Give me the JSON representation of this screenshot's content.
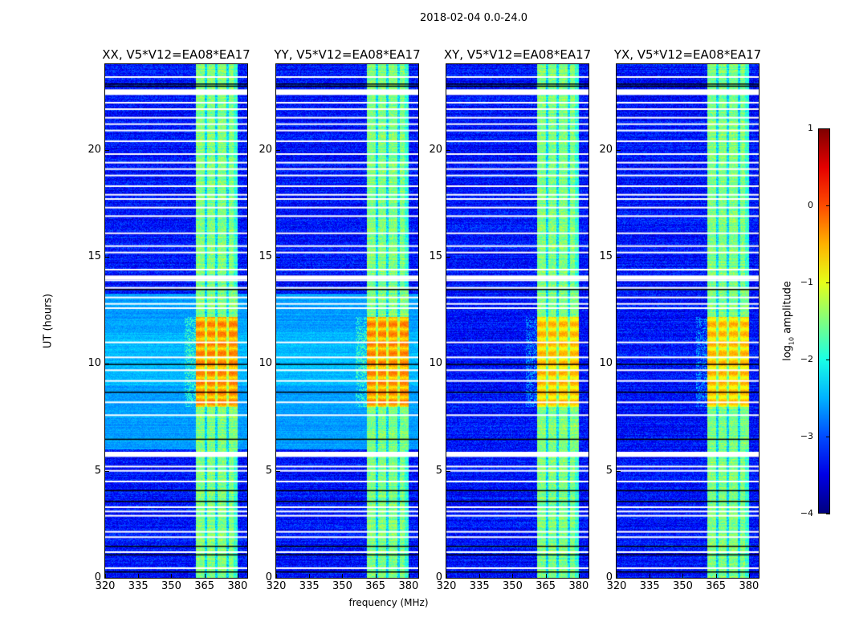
{
  "chart_data": {
    "type": "heatmap",
    "title": "2018-02-04 0.0-24.0",
    "xlabel": "frequency (MHz)",
    "ylabel": "UT (hours)",
    "xlim": [
      320,
      384.4
    ],
    "ylim": [
      0,
      24
    ],
    "xticks": [
      "320",
      "335",
      "350",
      "365",
      "380"
    ],
    "xtick_values": [
      320,
      335,
      350,
      365,
      380
    ],
    "yticks": [
      "0",
      "5",
      "10",
      "15",
      "20"
    ],
    "ytick_values": [
      0,
      5,
      10,
      15,
      20
    ],
    "panels": [
      {
        "title": "XX, V5*V12=EA08*EA17",
        "daytime_background_elevated": true
      },
      {
        "title": "YY, V5*V12=EA08*EA17",
        "daytime_background_elevated": true
      },
      {
        "title": "XY, V5*V12=EA08*EA17",
        "daytime_background_elevated": false
      },
      {
        "title": "YX, V5*V12=EA08*EA17",
        "daytime_background_elevated": false
      }
    ],
    "features": {
      "background_log_amp": -3.3,
      "band_mhz": [
        361,
        380
      ],
      "band_log_amp": -1.5,
      "band_gaps_mhz": [
        365.5,
        370.3,
        375.2
      ],
      "rfi_peak_ut": [
        8,
        12.2
      ],
      "rfi_peak_log_amp": -0.2,
      "flagged_ut": [
        0.45,
        1.2,
        1.9,
        2.15,
        2.9,
        3.1,
        3.3,
        4.5,
        5.0,
        5.2,
        5.7,
        5.85,
        7.6,
        8.2,
        9.2,
        9.7,
        10.3,
        11.0,
        12.6,
        12.8,
        13.1,
        13.55,
        13.9,
        14.05,
        14.4,
        15.2,
        15.5,
        16.1,
        16.9,
        17.3,
        17.7,
        17.9,
        18.3,
        18.8,
        19.1,
        19.4,
        19.8,
        20.4,
        20.9,
        21.2,
        21.5,
        21.9,
        22.2,
        22.6,
        22.75,
        23.4
      ],
      "dark_ut": [
        0.3,
        1.1,
        1.5,
        3.6,
        4.1,
        6.5,
        8.7,
        10.0,
        13.5,
        23.0,
        23.1
      ]
    },
    "colorbar": {
      "label": "log",
      "label_sub": "10",
      "label_rest": " amplitude",
      "range": [
        -4,
        1
      ],
      "ticks": [
        "1",
        "0",
        "−1",
        "−2",
        "−3",
        "−4"
      ],
      "tick_values": [
        1,
        0,
        -1,
        -2,
        -3,
        -4
      ],
      "colormap": "jet"
    }
  }
}
